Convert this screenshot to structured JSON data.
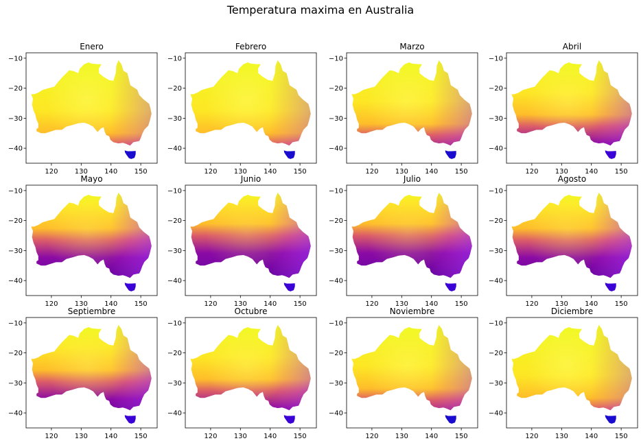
{
  "figure": {
    "title": "Temperatura maxima en Australia"
  },
  "chart_data": [
    {
      "type": "heatmap",
      "title": "Enero",
      "colormap": "plasma",
      "cool_fraction": 0.15,
      "x_ticks": [
        120,
        130,
        140,
        150
      ],
      "y_ticks": [
        -10,
        -20,
        -30,
        -40
      ],
      "xlim": [
        111.5,
        155.5
      ],
      "ylim": [
        -45,
        -8.2
      ],
      "grid": false
    },
    {
      "type": "heatmap",
      "title": "Febrero",
      "colormap": "plasma",
      "cool_fraction": 0.15,
      "x_ticks": [
        120,
        130,
        140,
        150
      ],
      "y_ticks": [
        -10,
        -20,
        -30,
        -40
      ],
      "xlim": [
        111.5,
        155.5
      ],
      "ylim": [
        -45,
        -8.2
      ],
      "grid": false
    },
    {
      "type": "heatmap",
      "title": "Marzo",
      "colormap": "plasma",
      "cool_fraction": 0.25,
      "x_ticks": [
        120,
        130,
        140,
        150
      ],
      "y_ticks": [
        -10,
        -20,
        -30,
        -40
      ],
      "xlim": [
        111.5,
        155.5
      ],
      "ylim": [
        -45,
        -8.2
      ],
      "grid": false
    },
    {
      "type": "heatmap",
      "title": "Abril",
      "colormap": "plasma",
      "cool_fraction": 0.35,
      "x_ticks": [
        120,
        130,
        140,
        150
      ],
      "y_ticks": [
        -10,
        -20,
        -30,
        -40
      ],
      "xlim": [
        111.5,
        155.5
      ],
      "ylim": [
        -45,
        -8.2
      ],
      "grid": false
    },
    {
      "type": "heatmap",
      "title": "Mayo",
      "colormap": "plasma",
      "cool_fraction": 0.55,
      "x_ticks": [
        120,
        130,
        140,
        150
      ],
      "y_ticks": [
        -10,
        -20,
        -30,
        -40
      ],
      "xlim": [
        111.5,
        155.5
      ],
      "ylim": [
        -45,
        -8.2
      ],
      "grid": false
    },
    {
      "type": "heatmap",
      "title": "Junio",
      "colormap": "plasma",
      "cool_fraction": 0.6,
      "x_ticks": [
        120,
        130,
        140,
        150
      ],
      "y_ticks": [
        -10,
        -20,
        -30,
        -40
      ],
      "xlim": [
        111.5,
        155.5
      ],
      "ylim": [
        -45,
        -8.2
      ],
      "grid": false
    },
    {
      "type": "heatmap",
      "title": "Julio",
      "colormap": "plasma",
      "cool_fraction": 0.6,
      "x_ticks": [
        120,
        130,
        140,
        150
      ],
      "y_ticks": [
        -10,
        -20,
        -30,
        -40
      ],
      "xlim": [
        111.5,
        155.5
      ],
      "ylim": [
        -45,
        -8.2
      ],
      "grid": false
    },
    {
      "type": "heatmap",
      "title": "Agosto",
      "colormap": "plasma",
      "cool_fraction": 0.55,
      "x_ticks": [
        120,
        130,
        140,
        150
      ],
      "y_ticks": [
        -10,
        -20,
        -30,
        -40
      ],
      "xlim": [
        111.5,
        155.5
      ],
      "ylim": [
        -45,
        -8.2
      ],
      "grid": false
    },
    {
      "type": "heatmap",
      "title": "Septiembre",
      "colormap": "plasma",
      "cool_fraction": 0.45,
      "x_ticks": [
        120,
        130,
        140,
        150
      ],
      "y_ticks": [
        -10,
        -20,
        -30,
        -40
      ],
      "xlim": [
        111.5,
        155.5
      ],
      "ylim": [
        -45,
        -8.2
      ],
      "grid": false
    },
    {
      "type": "heatmap",
      "title": "Octubre",
      "colormap": "plasma",
      "cool_fraction": 0.35,
      "x_ticks": [
        120,
        130,
        140,
        150
      ],
      "y_ticks": [
        -10,
        -20,
        -30,
        -40
      ],
      "xlim": [
        111.5,
        155.5
      ],
      "ylim": [
        -45,
        -8.2
      ],
      "grid": false
    },
    {
      "type": "heatmap",
      "title": "Noviembre",
      "colormap": "plasma",
      "cool_fraction": 0.25,
      "x_ticks": [
        120,
        130,
        140,
        150
      ],
      "y_ticks": [
        -10,
        -20,
        -30,
        -40
      ],
      "xlim": [
        111.5,
        155.5
      ],
      "ylim": [
        -45,
        -8.2
      ],
      "grid": false
    },
    {
      "type": "heatmap",
      "title": "Diciembre",
      "colormap": "plasma",
      "cool_fraction": 0.15,
      "x_ticks": [
        120,
        130,
        140,
        150
      ],
      "y_ticks": [
        -10,
        -20,
        -30,
        -40
      ],
      "xlim": [
        111.5,
        155.5
      ],
      "ylim": [
        -45,
        -8.2
      ],
      "grid": false
    }
  ]
}
